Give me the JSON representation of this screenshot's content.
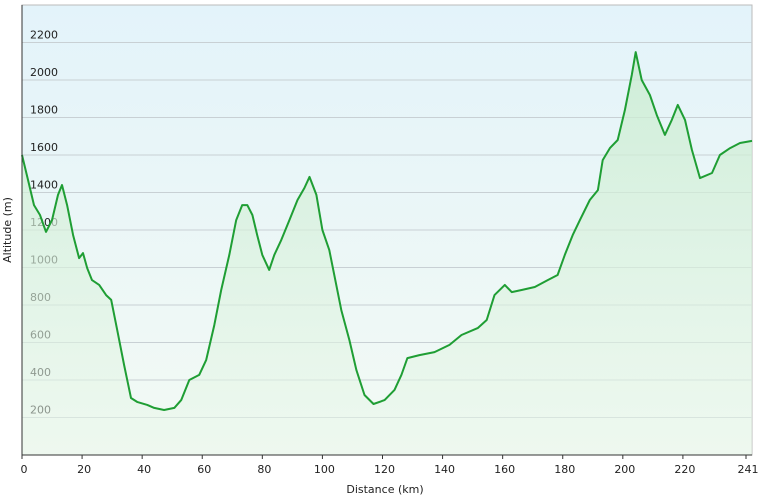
{
  "chart_data": {
    "type": "area-line",
    "x_label": "Distance  (km)",
    "y_label": "Altitude (m)",
    "color": "#1f9e34",
    "grid": true,
    "xlim": [
      0,
      243
    ],
    "ylim": [
      0,
      2400
    ],
    "xticks": [
      0,
      20,
      40,
      60,
      80,
      100,
      120,
      140,
      160,
      180,
      200,
      220,
      241
    ],
    "yticks": [
      200,
      400,
      600,
      800,
      1000,
      1200,
      1400,
      1600,
      1800,
      2000,
      2200
    ],
    "x": [
      0,
      2,
      4,
      6,
      8,
      10,
      12,
      13.3,
      15,
      17,
      19,
      20.3,
      21.7,
      23.3,
      25.7,
      28,
      29.7,
      31.7,
      34,
      36.3,
      38.3,
      41.7,
      44,
      47.3,
      50.7,
      53,
      55.7,
      59,
      61.3,
      64,
      66.3,
      69,
      71.3,
      73.3,
      75,
      76.7,
      78.3,
      80,
      82.3,
      84,
      86.3,
      89,
      91.7,
      94,
      95.7,
      98,
      100,
      102.3,
      104.3,
      106.3,
      109,
      111.3,
      114,
      117,
      120.7,
      124,
      126.3,
      128.3,
      132.3,
      137.3,
      142.3,
      146.3,
      151.7,
      154.7,
      157.3,
      160.7,
      163,
      166.3,
      170.7,
      175,
      178.3,
      180.7,
      183.3,
      185.7,
      189,
      191.7,
      193.3,
      195.7,
      198.3,
      200.7,
      203,
      204.3,
      206.3,
      209,
      211.3,
      214,
      216.3,
      218.3,
      220.7,
      223,
      225.7,
      229.7,
      232.3,
      235.7,
      239,
      243
    ],
    "values": [
      1600,
      1467,
      1333,
      1280,
      1190,
      1253,
      1387,
      1440,
      1333,
      1173,
      1050,
      1077,
      997,
      933,
      907,
      853,
      827,
      667,
      480,
      304,
      283,
      267,
      251,
      240,
      251,
      293,
      400,
      427,
      507,
      693,
      880,
      1067,
      1253,
      1333,
      1333,
      1280,
      1173,
      1067,
      987,
      1067,
      1147,
      1253,
      1360,
      1424,
      1483,
      1387,
      1200,
      1093,
      933,
      773,
      613,
      453,
      320,
      272,
      293,
      347,
      427,
      517,
      533,
      549,
      587,
      640,
      677,
      720,
      853,
      907,
      869,
      880,
      896,
      933,
      960,
      1067,
      1173,
      1253,
      1360,
      1413,
      1573,
      1637,
      1680,
      1840,
      2027,
      2149,
      2000,
      1920,
      1813,
      1707,
      1787,
      1867,
      1787,
      1627,
      1477,
      1504,
      1600,
      1637,
      1664,
      1675
    ]
  }
}
